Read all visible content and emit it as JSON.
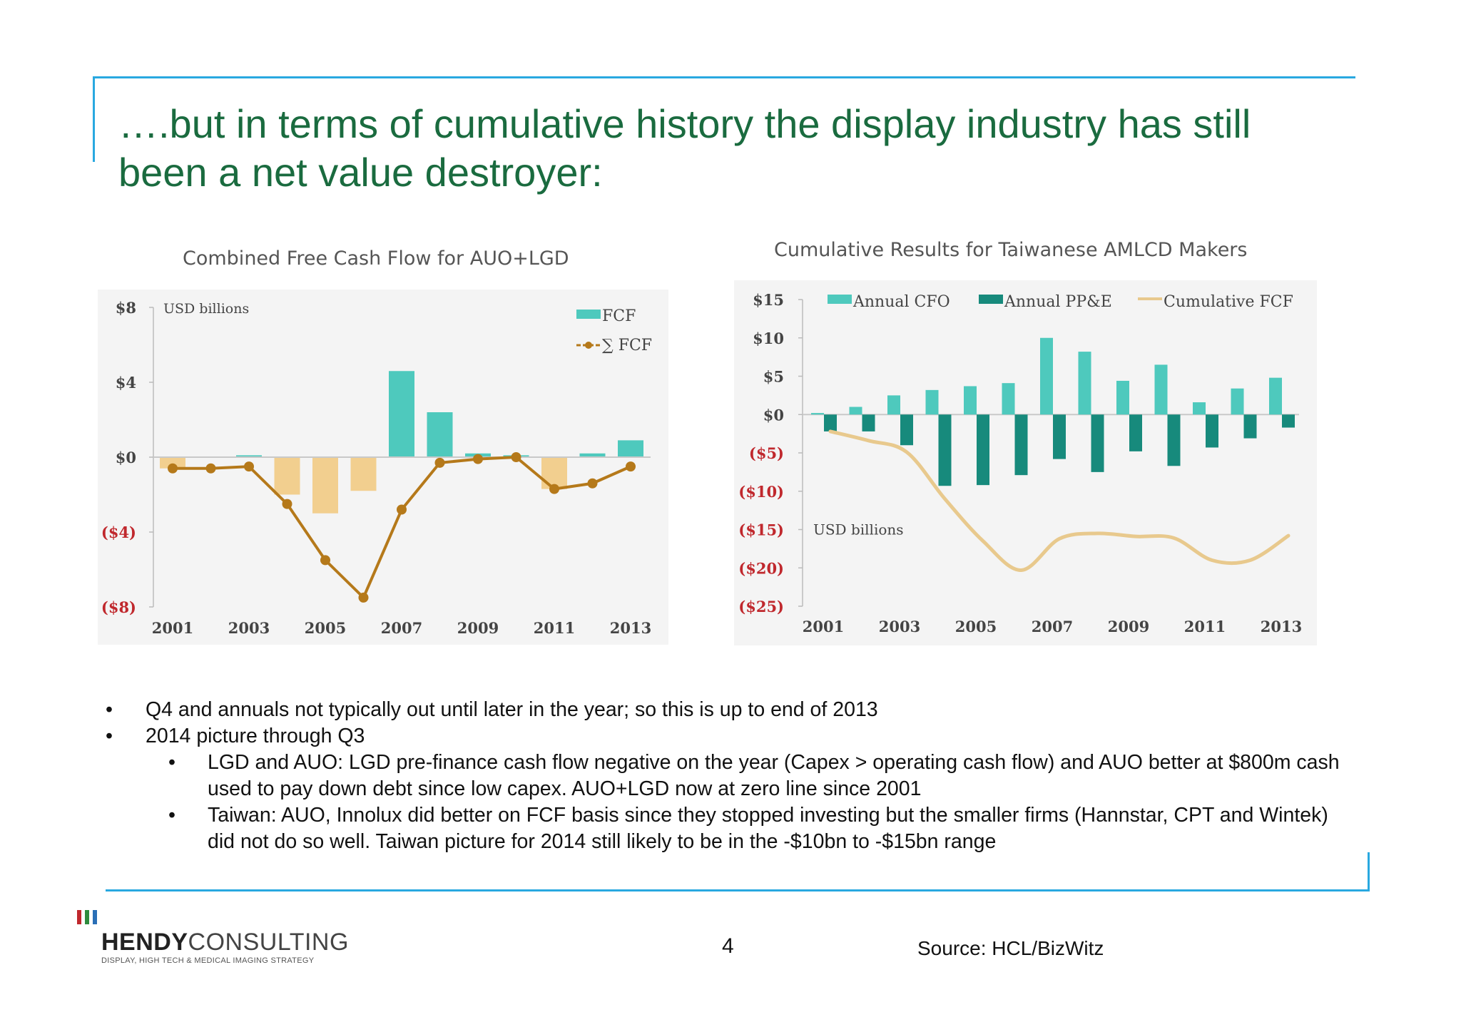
{
  "title_lines": [
    "….but in terms of cumulative history the display industry has still",
    "been a net value destroyer:"
  ],
  "colors": {
    "title": "#1a6b3f",
    "frame": "#29a8e0",
    "fcf_bar": "#4ec9bd",
    "neg_bar": "#f2cf8f",
    "cum_line": "#b5791a",
    "cfo_bar": "#4ec9bd",
    "ppe_bar": "#178a7c",
    "cum_fcf_line": "#e8c98d",
    "neg_tick": "#c0282d"
  },
  "chart_data": [
    {
      "type": "bar",
      "title": "Combined Free Cash Flow for AUO+LGD",
      "unit_label": "USD billions",
      "x": [
        2001,
        2002,
        2003,
        2004,
        2005,
        2006,
        2007,
        2008,
        2009,
        2010,
        2011,
        2012,
        2013
      ],
      "x_ticks": [
        "2001",
        "2003",
        "2005",
        "2007",
        "2009",
        "2011",
        "2013"
      ],
      "y_ticks": [
        "$8",
        "$4",
        "$0",
        "($4)",
        "($8)"
      ],
      "ylim": [
        -8,
        8
      ],
      "grid": false,
      "legend_position": "top-right",
      "series": [
        {
          "name": "FCF",
          "kind": "bar",
          "values": [
            -0.6,
            0.0,
            0.1,
            -2.0,
            -3.0,
            -1.8,
            4.6,
            2.4,
            0.2,
            0.1,
            -1.7,
            0.2,
            0.9
          ]
        },
        {
          "name": "∑ FCF",
          "kind": "line",
          "values": [
            -0.6,
            -0.6,
            -0.5,
            -2.5,
            -5.5,
            -7.5,
            -2.8,
            -0.3,
            -0.1,
            0.0,
            -1.7,
            -1.4,
            -0.5
          ]
        }
      ]
    },
    {
      "type": "bar",
      "title": "Cumulative Results for Taiwanese AMLCD Makers",
      "unit_label": "USD billions",
      "x": [
        2001,
        2002,
        2003,
        2004,
        2005,
        2006,
        2007,
        2008,
        2009,
        2010,
        2011,
        2012,
        2013
      ],
      "x_ticks": [
        "2001",
        "2003",
        "2005",
        "2007",
        "2009",
        "2011",
        "2013"
      ],
      "y_ticks": [
        "$15",
        "$10",
        "$5",
        "$0",
        "($5)",
        "($10)",
        "($15)",
        "($20)",
        "($25)"
      ],
      "ylim": [
        -25,
        15
      ],
      "grid": false,
      "legend_position": "top",
      "series": [
        {
          "name": "Annual CFO",
          "kind": "bar",
          "values": [
            0.2,
            1.0,
            2.5,
            3.2,
            3.7,
            4.1,
            10.0,
            8.2,
            4.4,
            6.5,
            1.6,
            3.4,
            4.8
          ]
        },
        {
          "name": "Annual PP&E",
          "kind": "bar",
          "values": [
            -2.2,
            -2.2,
            -4.0,
            -9.3,
            -9.2,
            -7.9,
            -5.8,
            -7.5,
            -4.8,
            -6.7,
            -4.3,
            -3.1,
            -1.7
          ]
        },
        {
          "name": "Cumulative FCF",
          "kind": "line",
          "values": [
            -2.2,
            -3.4,
            -4.9,
            -11.0,
            -16.5,
            -20.3,
            -16.2,
            -15.5,
            -15.9,
            -16.1,
            -19.0,
            -19.0,
            -15.8
          ]
        }
      ]
    }
  ],
  "bullets": [
    {
      "level": 1,
      "text": "Q4 and annuals not typically out until later in the year; so this is up to end of 2013"
    },
    {
      "level": 1,
      "text": "2014 picture through Q3"
    },
    {
      "level": 2,
      "text": "LGD and AUO: LGD pre-finance cash flow negative on the year (Capex > operating cash flow) and AUO better at $800m cash used to pay down debt since low capex. AUO+LGD now at zero line since 2001"
    },
    {
      "level": 2,
      "text": "Taiwan: AUO, Innolux did better on FCF basis since they stopped investing but the smaller firms  (Hannstar, CPT and Wintek) did not do so well. Taiwan picture for 2014 still likely to be in the -$10bn to -$15bn range"
    }
  ],
  "logo": {
    "name_bold": "HENDY",
    "name_light": "CONSULTING",
    "tagline": "DISPLAY, HIGH TECH & MEDICAL IMAGING STRATEGY",
    "bar_colors": [
      "#c0282d",
      "#2e8b3d",
      "#2a6fb6"
    ]
  },
  "footer": {
    "page_number": "4",
    "source": "Source: HCL/BizWitz"
  }
}
